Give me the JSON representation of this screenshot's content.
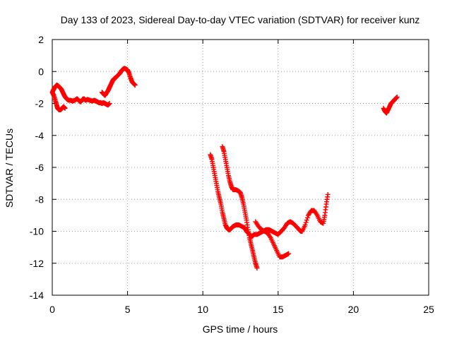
{
  "chart_data": {
    "type": "scatter",
    "title": "Day 133 of 2023, Sidereal Day-to-day VTEC variation (SDTVAR) for receiver kunz",
    "xlabel": "GPS time / hours",
    "ylabel": "SDTVAR / TECUs",
    "xlim": [
      0,
      25
    ],
    "ylim": [
      -14,
      2
    ],
    "xticks": [
      0,
      5,
      10,
      15,
      20,
      25
    ],
    "yticks": [
      -14,
      -12,
      -10,
      -8,
      -6,
      -4,
      -2,
      0,
      2
    ],
    "grid": true,
    "legend": "none",
    "marker": "plus",
    "color": "#ff0000",
    "series": [
      {
        "x": [
          0.0,
          0.1,
          0.2,
          0.3,
          0.35,
          0.45,
          0.55,
          0.65,
          0.75,
          0.85
        ],
        "y": [
          -1.3,
          -1.5,
          -1.8,
          -2.1,
          -2.3,
          -2.4,
          -2.4,
          -2.3,
          -2.2,
          -2.3
        ]
      },
      {
        "x": [
          0.0,
          0.1,
          0.2,
          0.3,
          0.4,
          0.5,
          0.6,
          0.7,
          0.8,
          0.9,
          1.0,
          1.1,
          1.2,
          1.35,
          1.5,
          1.65,
          1.8,
          1.9,
          2.0,
          2.1,
          2.2,
          2.35,
          2.5,
          2.65,
          2.8,
          2.9,
          3.0,
          3.1,
          3.2,
          3.3,
          3.4,
          3.5,
          3.6,
          3.7,
          3.8
        ],
        "y": [
          -1.3,
          -1.1,
          -0.95,
          -0.85,
          -0.9,
          -1.0,
          -1.1,
          -1.3,
          -1.5,
          -1.65,
          -1.75,
          -1.8,
          -1.8,
          -1.85,
          -1.8,
          -1.7,
          -1.85,
          -1.9,
          -1.75,
          -1.7,
          -1.8,
          -1.75,
          -1.8,
          -1.85,
          -1.8,
          -1.85,
          -1.9,
          -1.95,
          -1.95,
          -2.0,
          -1.95,
          -2.0,
          -2.05,
          -2.1,
          -2.0
        ]
      },
      {
        "x": [
          3.3,
          3.4,
          3.5,
          3.6,
          3.7,
          3.8,
          3.9,
          4.0,
          4.1,
          4.2,
          4.3,
          4.4,
          4.5,
          4.6,
          4.7,
          4.8,
          4.9,
          5.0,
          5.1,
          5.2,
          5.3,
          5.4,
          5.5
        ],
        "y": [
          -1.3,
          -1.4,
          -1.5,
          -1.35,
          -1.2,
          -1.0,
          -0.8,
          -0.6,
          -0.45,
          -0.4,
          -0.3,
          -0.2,
          -0.1,
          0.05,
          0.15,
          0.2,
          0.15,
          0.1,
          -0.1,
          -0.4,
          -0.65,
          -0.75,
          -0.85
        ]
      },
      {
        "x": [
          10.5,
          10.6,
          10.7,
          10.8,
          10.9,
          11.0,
          11.1,
          11.2,
          11.3,
          11.4,
          11.5,
          11.6,
          11.7,
          11.8,
          11.9,
          12.0,
          12.2,
          12.4,
          12.6,
          12.8,
          12.9,
          13.0,
          13.1,
          13.2,
          13.3,
          13.4,
          13.5,
          13.6,
          13.8,
          14.0,
          14.2,
          14.4,
          14.6,
          14.8,
          15.0,
          15.2,
          15.4,
          15.6,
          15.8,
          16.0,
          16.2,
          16.4,
          16.5,
          16.6,
          16.8,
          17.0,
          17.2,
          17.4,
          17.6,
          17.8,
          18.0,
          18.1,
          18.2,
          18.3
        ],
        "y": [
          -5.2,
          -5.5,
          -6.0,
          -6.5,
          -7.0,
          -7.5,
          -7.9,
          -8.3,
          -8.8,
          -9.2,
          -9.6,
          -9.8,
          -9.9,
          -9.9,
          -9.8,
          -9.7,
          -9.6,
          -9.6,
          -9.7,
          -9.8,
          -10.0,
          -10.1,
          -10.2,
          -10.3,
          -10.3,
          -10.2,
          -10.2,
          -10.2,
          -10.1,
          -10.0,
          -9.9,
          -9.9,
          -10.0,
          -10.1,
          -10.2,
          -10.0,
          -9.8,
          -9.5,
          -9.4,
          -9.5,
          -9.7,
          -9.9,
          -10.0,
          -10.0,
          -9.6,
          -9.0,
          -8.7,
          -8.7,
          -9.0,
          -9.4,
          -9.5,
          -9.0,
          -8.3,
          -7.7
        ]
      },
      {
        "x": [
          11.3,
          11.4,
          11.5,
          11.6,
          11.7,
          11.8,
          11.9,
          12.0,
          12.2,
          12.4,
          12.5,
          12.6,
          12.7,
          12.8,
          12.9,
          13.0,
          13.1,
          13.2,
          13.3,
          13.4,
          13.5,
          13.6
        ],
        "y": [
          -4.7,
          -5.0,
          -5.5,
          -6.0,
          -6.5,
          -6.9,
          -7.2,
          -7.4,
          -7.4,
          -7.5,
          -7.6,
          -7.9,
          -8.3,
          -8.8,
          -9.3,
          -9.9,
          -10.4,
          -10.8,
          -11.2,
          -11.6,
          -12.0,
          -12.3
        ]
      },
      {
        "x": [
          13.5,
          13.7,
          13.9,
          14.1,
          14.3,
          14.5,
          14.7,
          14.9,
          15.1,
          15.3,
          15.5,
          15.7
        ],
        "y": [
          -9.4,
          -9.7,
          -9.9,
          -10.0,
          -10.1,
          -10.4,
          -10.8,
          -11.2,
          -11.6,
          -11.6,
          -11.5,
          -11.4
        ]
      },
      {
        "x": [
          22.0,
          22.1,
          22.2,
          22.3,
          22.4,
          22.5,
          22.6,
          22.7,
          22.8,
          22.9
        ],
        "y": [
          -2.3,
          -2.5,
          -2.6,
          -2.4,
          -2.2,
          -2.0,
          -1.9,
          -1.8,
          -1.7,
          -1.6
        ]
      }
    ]
  }
}
